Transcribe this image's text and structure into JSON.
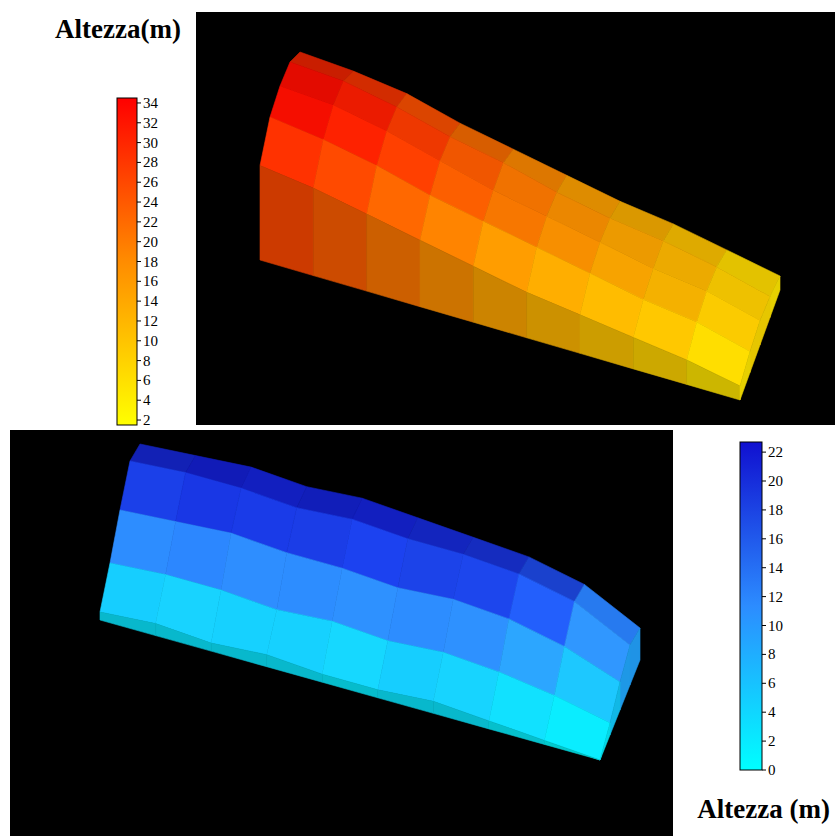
{
  "chart_data": [
    {
      "type": "surface",
      "colors": [
        "#ffff00",
        "#ff8c00",
        "#ff0000"
      ],
      "colorbar": {
        "title": "Altezza(m)",
        "range": [
          1.5,
          34.5
        ],
        "ticks": [
          2,
          4,
          6,
          8,
          10,
          12,
          14,
          16,
          18,
          20,
          22,
          24,
          26,
          28,
          30,
          32,
          34
        ]
      },
      "z": [
        [
          28,
          33,
          34,
          33,
          27
        ],
        [
          27,
          32,
          33,
          31,
          25
        ],
        [
          25,
          29,
          30,
          28,
          22
        ],
        [
          21,
          25,
          26,
          24,
          19
        ],
        [
          18,
          22,
          22,
          21,
          16
        ],
        [
          15,
          18,
          19,
          18,
          13
        ],
        [
          12,
          15,
          16,
          15,
          11
        ],
        [
          10,
          13,
          13,
          12,
          9
        ],
        [
          7,
          10,
          11,
          10,
          7
        ],
        [
          4,
          6,
          7,
          6,
          4
        ]
      ]
    },
    {
      "type": "surface",
      "colors": [
        "#00ffff",
        "#2c8cff",
        "#1010d0"
      ],
      "colorbar": {
        "title": "Altezza (m)",
        "range": [
          0,
          22.7
        ],
        "ticks": [
          0,
          2,
          4,
          6,
          8,
          10,
          12,
          14,
          16,
          18,
          20,
          22
        ]
      },
      "z": [
        [
          19,
          21,
          15,
          8,
          2
        ],
        [
          20,
          22,
          16,
          9,
          3
        ],
        [
          21,
          22,
          17,
          9,
          2
        ],
        [
          20,
          21,
          16,
          8,
          3
        ],
        [
          21,
          22,
          16,
          9,
          2
        ],
        [
          20,
          21,
          15,
          8,
          2
        ],
        [
          19,
          21,
          16,
          9,
          3
        ],
        [
          18,
          20,
          15,
          8,
          2
        ],
        [
          15,
          17,
          12,
          6,
          1
        ],
        [
          8,
          10,
          7,
          3,
          0
        ]
      ]
    }
  ]
}
